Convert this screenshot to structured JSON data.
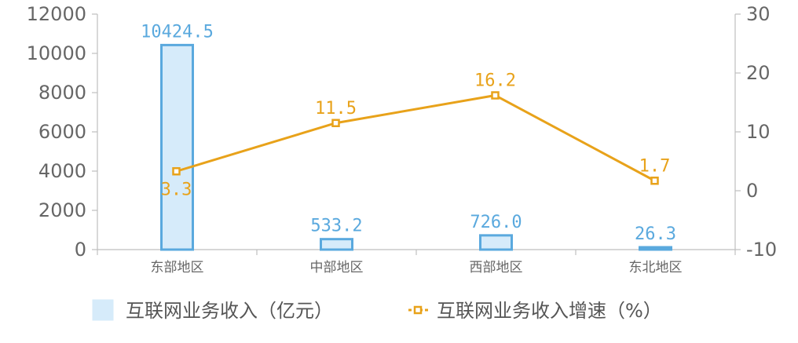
{
  "chart_data": {
    "type": "bar",
    "categories": [
      "东部地区",
      "中部地区",
      "西部地区",
      "东北地区"
    ],
    "series": [
      {
        "name": "互联网业务收入（亿元）",
        "type": "bar",
        "axis": "left",
        "values": [
          10424.5,
          533.2,
          726.0,
          26.3
        ],
        "labels": [
          "10424.5",
          "533.2",
          "726.0",
          "26.3"
        ],
        "color": "#5aa9de",
        "fill": "#d6ebfa"
      },
      {
        "name": "互联网业务收入增速（%）",
        "type": "line",
        "axis": "right",
        "values": [
          3.3,
          11.5,
          16.2,
          1.7
        ],
        "labels": [
          "3.3",
          "11.5",
          "16.2",
          "1.7"
        ],
        "color": "#e8a21a"
      }
    ],
    "ylim_left": [
      0,
      12000
    ],
    "yticks_left": [
      0,
      2000,
      4000,
      6000,
      8000,
      10000,
      12000
    ],
    "ylim_right": [
      -10,
      30
    ],
    "yticks_right": [
      -10,
      0,
      10,
      20,
      30
    ],
    "legend": "bottom",
    "grid": false
  }
}
